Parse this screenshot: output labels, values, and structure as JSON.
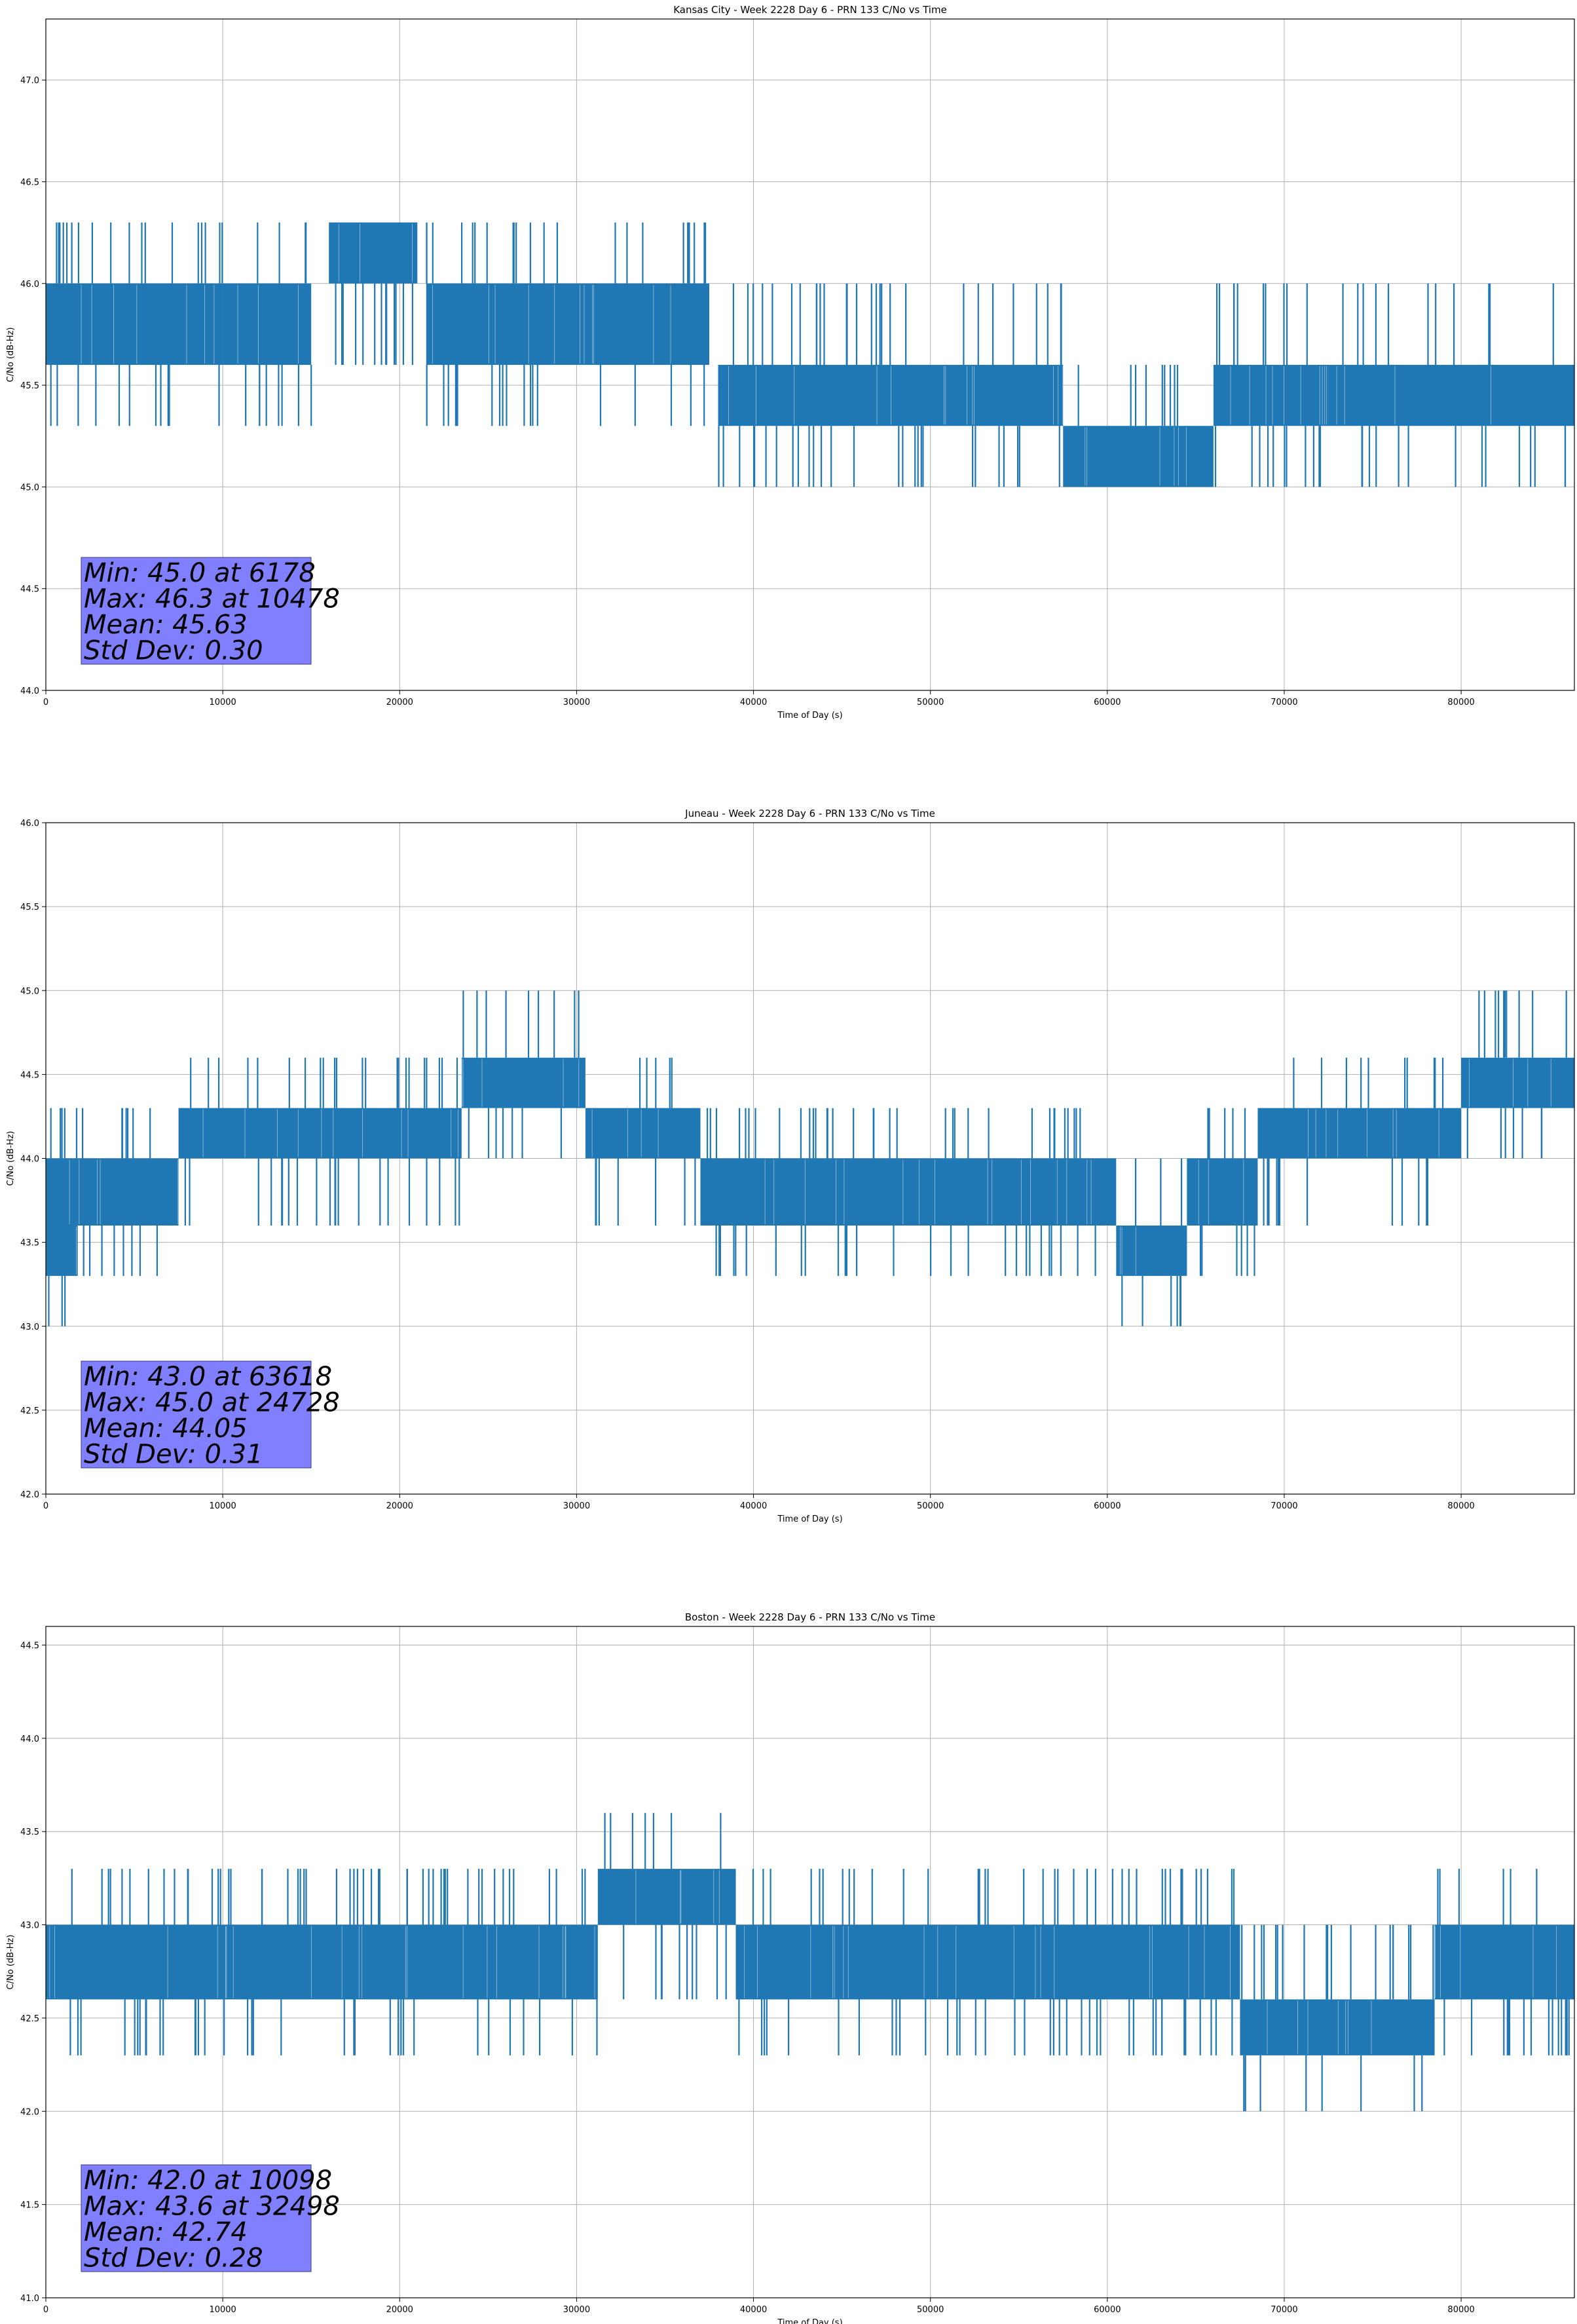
{
  "figure": {
    "colors": {
      "series": "#1f77b4",
      "stats_box": "#8080ff",
      "grid": "#b0b0b0",
      "axes": "#000000"
    }
  },
  "chart_data": [
    {
      "type": "line",
      "title": "Kansas City - Week 2228 Day 6 - PRN 133 C/No vs Time",
      "xlabel": "Time of Day (s)",
      "ylabel": "C/No (dB-Hz)",
      "xlim": [
        0,
        86400
      ],
      "ylim": [
        44.0,
        47.3
      ],
      "xticks": [
        0,
        10000,
        20000,
        30000,
        40000,
        50000,
        60000,
        70000,
        80000
      ],
      "xtick_labels": [
        "0",
        "10000",
        "20000",
        "30000",
        "40000",
        "50000",
        "60000",
        "70000",
        "80000"
      ],
      "yticks": [
        44.0,
        44.5,
        45.0,
        45.5,
        46.0,
        46.5,
        47.0
      ],
      "ytick_labels": [
        "44.0",
        "44.5",
        "45.0",
        "45.5",
        "46.0",
        "46.5",
        "47.0"
      ],
      "grid": true,
      "levels": [
        45.0,
        45.3,
        45.6,
        46.0,
        46.3
      ],
      "segments": [
        {
          "x": [
            0,
            10000
          ],
          "low": 45.6,
          "high": 46.0
        },
        {
          "x": [
            10000,
            15000
          ],
          "low": 45.6,
          "high": 46.0
        },
        {
          "x": [
            16000,
            21000
          ],
          "low": 46.0,
          "high": 46.3
        },
        {
          "x": [
            21500,
            37500
          ],
          "low": 45.6,
          "high": 46.0
        },
        {
          "x": [
            38000,
            57500
          ],
          "low": 45.3,
          "high": 45.6
        },
        {
          "x": [
            57500,
            66000
          ],
          "low": 45.0,
          "high": 45.3
        },
        {
          "x": [
            66000,
            86400
          ],
          "low": 45.3,
          "high": 45.6
        }
      ],
      "stats": [
        "Min: 45.0 at 6178",
        "Max: 46.3 at 10478",
        "Mean: 45.63",
        "Std Dev: 0.30"
      ]
    },
    {
      "type": "line",
      "title": "Juneau - Week 2228 Day 6 - PRN 133 C/No vs Time",
      "xlabel": "Time of Day (s)",
      "ylabel": "C/No (dB-Hz)",
      "xlim": [
        0,
        86400
      ],
      "ylim": [
        42.0,
        46.0
      ],
      "xticks": [
        0,
        10000,
        20000,
        30000,
        40000,
        50000,
        60000,
        70000,
        80000
      ],
      "xtick_labels": [
        "0",
        "10000",
        "20000",
        "30000",
        "40000",
        "50000",
        "60000",
        "70000",
        "80000"
      ],
      "yticks": [
        42.0,
        42.5,
        43.0,
        43.5,
        44.0,
        44.5,
        45.0,
        45.5,
        46.0
      ],
      "ytick_labels": [
        "42.0",
        "42.5",
        "43.0",
        "43.5",
        "44.0",
        "44.5",
        "45.0",
        "45.5",
        "46.0"
      ],
      "grid": true,
      "levels": [
        43.0,
        43.3,
        43.6,
        44.0,
        44.3,
        44.6,
        45.0
      ],
      "segments": [
        {
          "x": [
            0,
            1800
          ],
          "low": 43.3,
          "high": 43.6
        },
        {
          "x": [
            0,
            7500
          ],
          "low": 43.6,
          "high": 44.0
        },
        {
          "x": [
            7500,
            23500
          ],
          "low": 44.0,
          "high": 44.3
        },
        {
          "x": [
            23500,
            30500
          ],
          "low": 44.3,
          "high": 44.6
        },
        {
          "x": [
            30500,
            37000
          ],
          "low": 44.0,
          "high": 44.3
        },
        {
          "x": [
            37000,
            60500
          ],
          "low": 43.6,
          "high": 44.0
        },
        {
          "x": [
            60500,
            64500
          ],
          "low": 43.3,
          "high": 43.6
        },
        {
          "x": [
            64500,
            68500
          ],
          "low": 43.6,
          "high": 44.0
        },
        {
          "x": [
            68500,
            80000
          ],
          "low": 44.0,
          "high": 44.3
        },
        {
          "x": [
            80000,
            86400
          ],
          "low": 44.3,
          "high": 44.6
        }
      ],
      "stats": [
        "Min: 43.0 at 63618",
        "Max: 45.0 at 24728",
        "Mean: 44.05",
        "Std Dev: 0.31"
      ]
    },
    {
      "type": "line",
      "title": "Boston - Week 2228 Day 6 - PRN 133 C/No vs Time",
      "xlabel": "Time of Day (s)",
      "ylabel": "C/No (dB-Hz)",
      "xlim": [
        0,
        86400
      ],
      "ylim": [
        41.0,
        44.6
      ],
      "xticks": [
        0,
        10000,
        20000,
        30000,
        40000,
        50000,
        60000,
        70000,
        80000
      ],
      "xtick_labels": [
        "0",
        "10000",
        "20000",
        "30000",
        "40000",
        "50000",
        "60000",
        "70000",
        "80000"
      ],
      "yticks": [
        41.0,
        41.5,
        42.0,
        42.5,
        43.0,
        43.5,
        44.0,
        44.5
      ],
      "ytick_labels": [
        "41.0",
        "41.5",
        "42.0",
        "42.5",
        "43.0",
        "43.5",
        "44.0",
        "44.5"
      ],
      "grid": true,
      "levels": [
        42.0,
        42.3,
        42.6,
        43.0,
        43.3,
        43.6
      ],
      "segments": [
        {
          "x": [
            0,
            31200
          ],
          "low": 42.6,
          "high": 43.0
        },
        {
          "x": [
            31200,
            39000
          ],
          "low": 43.0,
          "high": 43.3
        },
        {
          "x": [
            39000,
            67500
          ],
          "low": 42.6,
          "high": 43.0
        },
        {
          "x": [
            67500,
            78500
          ],
          "low": 42.3,
          "high": 42.6
        },
        {
          "x": [
            78500,
            86400
          ],
          "low": 42.6,
          "high": 43.0
        }
      ],
      "stats": [
        "Min: 42.0 at 10098",
        "Max: 43.6 at 32498",
        "Mean: 42.74",
        "Std Dev: 0.28"
      ]
    }
  ]
}
